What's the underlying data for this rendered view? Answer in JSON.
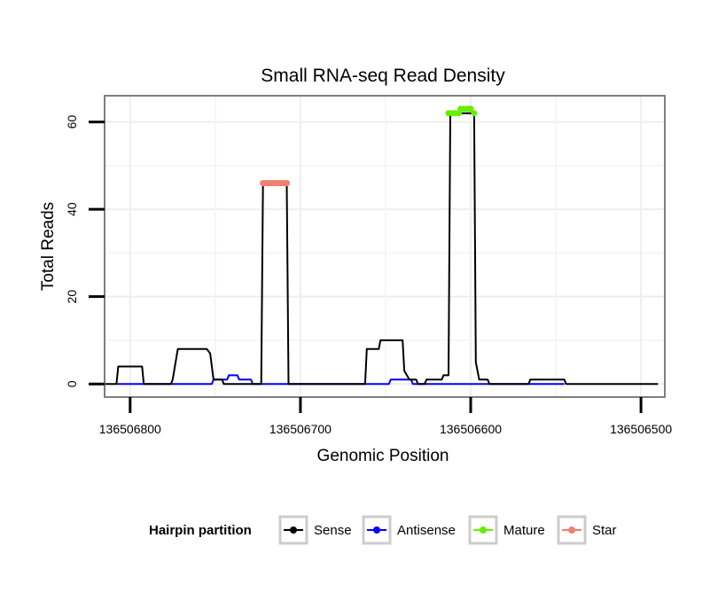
{
  "chart_data": {
    "type": "line",
    "title": "Small RNA-seq Read Density",
    "xlabel": "Genomic Position",
    "ylabel": "Total Reads",
    "x_reversed": true,
    "xlim": [
      136506815,
      136506486
    ],
    "ylim": [
      -3,
      66
    ],
    "x_ticks": [
      136506800,
      136506700,
      136506600,
      136506500
    ],
    "x_tick_labels": [
      "136506800",
      "136506700",
      "136506600",
      "136506500"
    ],
    "y_ticks": [
      0,
      20,
      40,
      60
    ],
    "y_tick_labels": [
      "0",
      "20",
      "40",
      "60"
    ],
    "grid": true,
    "legend": {
      "title": "Hairpin partition",
      "position": "bottom",
      "entries": [
        {
          "label": "Sense",
          "color": "#000000"
        },
        {
          "label": "Antisense",
          "color": "#0000ff"
        },
        {
          "label": "Mature",
          "color": "#66ee00"
        },
        {
          "label": "Star",
          "color": "#f08070"
        }
      ]
    },
    "series": [
      {
        "name": "Sense",
        "color": "#000000",
        "points": [
          [
            136506816,
            0
          ],
          [
            136506808,
            0
          ],
          [
            136506807,
            4
          ],
          [
            136506793,
            4
          ],
          [
            136506792,
            0
          ],
          [
            136506776,
            0
          ],
          [
            136506775,
            1
          ],
          [
            136506772,
            8
          ],
          [
            136506755,
            8
          ],
          [
            136506753,
            7
          ],
          [
            136506751,
            1
          ],
          [
            136506746,
            1
          ],
          [
            136506745,
            0
          ],
          [
            136506723,
            0
          ],
          [
            136506722,
            46
          ],
          [
            136506708,
            46
          ],
          [
            136506707,
            0
          ],
          [
            136506662,
            0
          ],
          [
            136506661,
            8
          ],
          [
            136506654,
            8
          ],
          [
            136506653,
            10
          ],
          [
            136506640,
            10
          ],
          [
            136506639,
            3
          ],
          [
            136506636,
            1
          ],
          [
            136506632,
            1
          ],
          [
            136506631,
            0
          ],
          [
            136506627,
            0
          ],
          [
            136506626,
            1
          ],
          [
            136506617,
            1
          ],
          [
            136506616,
            2
          ],
          [
            136506613,
            2
          ],
          [
            136506612,
            62
          ],
          [
            136506598,
            62
          ],
          [
            136506597,
            5
          ],
          [
            136506595,
            1
          ],
          [
            136506590,
            1
          ],
          [
            136506589,
            0
          ],
          [
            136506566,
            0
          ],
          [
            136506565,
            1
          ],
          [
            136506545,
            1
          ],
          [
            136506544,
            0
          ],
          [
            136506490,
            0
          ]
        ]
      },
      {
        "name": "Antisense",
        "color": "#0000ff",
        "points": [
          [
            136506808,
            0
          ],
          [
            136506752,
            0
          ],
          [
            136506751,
            1
          ],
          [
            136506743,
            1
          ],
          [
            136506742,
            2
          ],
          [
            136506737,
            2
          ],
          [
            136506736,
            1
          ],
          [
            136506729,
            1
          ],
          [
            136506728,
            0
          ],
          [
            136506648,
            0
          ],
          [
            136506647,
            1
          ],
          [
            136506635,
            1
          ],
          [
            136506634,
            0
          ],
          [
            136506558,
            0
          ],
          [
            136506557,
            0
          ],
          [
            136506545,
            0
          ]
        ]
      },
      {
        "name": "Mature",
        "color": "#66ee00",
        "points": [
          [
            136506613,
            62
          ],
          [
            136506611,
            62
          ],
          [
            136506609,
            62
          ],
          [
            136506607,
            62
          ],
          [
            136506606,
            63
          ],
          [
            136506604,
            63
          ],
          [
            136506602,
            63
          ],
          [
            136506600,
            63
          ],
          [
            136506598,
            62
          ]
        ]
      },
      {
        "name": "Star",
        "color": "#f08070",
        "points": [
          [
            136506722,
            46
          ],
          [
            136506721,
            46
          ],
          [
            136506720,
            46
          ],
          [
            136506719,
            46
          ],
          [
            136506718,
            46
          ],
          [
            136506717,
            46
          ],
          [
            136506716,
            46
          ],
          [
            136506715,
            46
          ],
          [
            136506714,
            46
          ],
          [
            136506713,
            46
          ],
          [
            136506712,
            46
          ],
          [
            136506711,
            46
          ],
          [
            136506710,
            46
          ],
          [
            136506709,
            46
          ],
          [
            136506708,
            46
          ]
        ]
      }
    ]
  }
}
